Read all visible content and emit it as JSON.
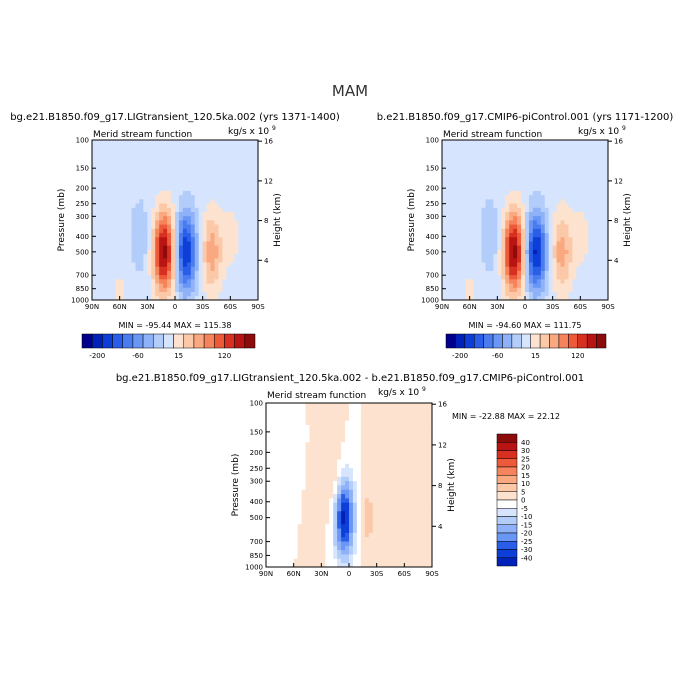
{
  "figure": {
    "title": "MAM"
  },
  "chart_data": [
    {
      "type": "heatmap",
      "title": "bg.e21.B1850.f09_g17.LIGtransient_120.5ka.002 (yrs 1371-1400)",
      "subtitle_left": "Merid stream function",
      "subtitle_right": "kg/s x 10",
      "units_exponent": "9",
      "xlabel": "",
      "ylabel": "Pressure (mb)",
      "ylabel_right": "Height (km)",
      "x_ticks": [
        "90N",
        "60N",
        "30N",
        "0",
        "30S",
        "60S",
        "90S"
      ],
      "y_ticks": [
        "100",
        "150",
        "200",
        "250",
        "300",
        "400",
        "500",
        "700",
        "850",
        "1000"
      ],
      "y_right_ticks": [
        "16",
        "12",
        "8",
        "4"
      ],
      "xlim": [
        90,
        -90
      ],
      "ylim": [
        1000,
        100
      ],
      "y_scale": "log",
      "stats": "MIN = -95.44   MAX = 115.38",
      "colorbar": {
        "labels": [
          "-200",
          "-60",
          "15",
          "120"
        ],
        "colors": [
          "#00008c",
          "#0022b8",
          "#0d3fd8",
          "#2a5ee8",
          "#4a7cf0",
          "#6a96f5",
          "#8eb1f8",
          "#b3cdfb",
          "#d6e5fd",
          "#fde3cf",
          "#fbc8a8",
          "#f9a880",
          "#f5845c",
          "#ec5a3a",
          "#d83020",
          "#b81414",
          "#8c0b0b"
        ]
      },
      "cells": [
        {
          "x": 60,
          "p": 850,
          "v": 8
        },
        {
          "x": 38,
          "p": 400,
          "v": -18
        },
        {
          "x": 12,
          "p": 500,
          "v": 115.38
        },
        {
          "x": -12,
          "p": 500,
          "v": -95.44
        },
        {
          "x": -40,
          "p": 500,
          "v": 45
        },
        {
          "x": -62,
          "p": 400,
          "v": 10
        }
      ]
    },
    {
      "type": "heatmap",
      "title": "b.e21.B1850.f09_g17.CMIP6-piControl.001 (yrs 1171-1200)",
      "subtitle_left": "Merid stream function",
      "subtitle_right": "kg/s x 10",
      "units_exponent": "9",
      "xlabel": "",
      "ylabel": "Pressure (mb)",
      "ylabel_right": "Height (km)",
      "x_ticks": [
        "90N",
        "60N",
        "30N",
        "0",
        "30S",
        "60S",
        "90S"
      ],
      "y_ticks": [
        "100",
        "150",
        "200",
        "250",
        "300",
        "400",
        "500",
        "700",
        "850",
        "1000"
      ],
      "y_right_ticks": [
        "16",
        "12",
        "8",
        "4"
      ],
      "xlim": [
        90,
        -90
      ],
      "ylim": [
        1000,
        100
      ],
      "y_scale": "log",
      "stats": "MIN = -94.60   MAX = 111.75",
      "colorbar": {
        "labels": [
          "-200",
          "-60",
          "15",
          "120"
        ],
        "colors": [
          "#00008c",
          "#0022b8",
          "#0d3fd8",
          "#2a5ee8",
          "#4a7cf0",
          "#6a96f5",
          "#8eb1f8",
          "#b3cdfb",
          "#d6e5fd",
          "#fde3cf",
          "#fbc8a8",
          "#f9a880",
          "#f5845c",
          "#ec5a3a",
          "#d83020",
          "#b81414",
          "#8c0b0b"
        ]
      },
      "cells": [
        {
          "x": 60,
          "p": 850,
          "v": 8
        },
        {
          "x": 38,
          "p": 400,
          "v": -18
        },
        {
          "x": 12,
          "p": 500,
          "v": 111.75
        },
        {
          "x": -12,
          "p": 500,
          "v": -94.6
        },
        {
          "x": -40,
          "p": 500,
          "v": 42
        },
        {
          "x": -62,
          "p": 400,
          "v": 10
        }
      ]
    },
    {
      "type": "heatmap",
      "title": "bg.e21.B1850.f09_g17.LIGtransient_120.5ka.002 - b.e21.B1850.f09_g17.CMIP6-piControl.001",
      "subtitle_left": "Merid stream function",
      "subtitle_right": "kg/s x 10",
      "units_exponent": "9",
      "xlabel": "",
      "ylabel": "Pressure (mb)",
      "ylabel_right": "Height (km)",
      "x_ticks": [
        "90N",
        "60N",
        "30N",
        "0",
        "30S",
        "60S",
        "90S"
      ],
      "y_ticks": [
        "100",
        "150",
        "200",
        "250",
        "300",
        "400",
        "500",
        "700",
        "850",
        "1000"
      ],
      "y_right_ticks": [
        "16",
        "12",
        "8",
        "4"
      ],
      "xlim": [
        90,
        -90
      ],
      "ylim": [
        1000,
        100
      ],
      "y_scale": "log",
      "stats": "MIN = -22.88   MAX =  22.12",
      "colorbar": {
        "labels": [
          "40",
          "30",
          "25",
          "20",
          "15",
          "10",
          "5",
          "0",
          "-5",
          "-10",
          "-15",
          "-20",
          "-25",
          "-30",
          "-40"
        ],
        "colors": [
          "#8c0b0b",
          "#b81414",
          "#d83020",
          "#ec5a3a",
          "#f5845c",
          "#f9a880",
          "#fbc8a8",
          "#fde3cf",
          "#ffffff",
          "#d6e5fd",
          "#b3cdfb",
          "#8eb1f8",
          "#6a96f5",
          "#2a5ee8",
          "#0d3fd8",
          "#0022b8"
        ]
      },
      "cells": [
        {
          "x": 5,
          "p": 500,
          "v": -22.88
        },
        {
          "x": 18,
          "p": 300,
          "v": 4
        },
        {
          "x": -20,
          "p": 500,
          "v": 4
        },
        {
          "x": 40,
          "p": 700,
          "v": 3
        },
        {
          "x": 65,
          "p": 400,
          "v": -2
        },
        {
          "x": -55,
          "p": 700,
          "v": 3
        }
      ]
    }
  ]
}
